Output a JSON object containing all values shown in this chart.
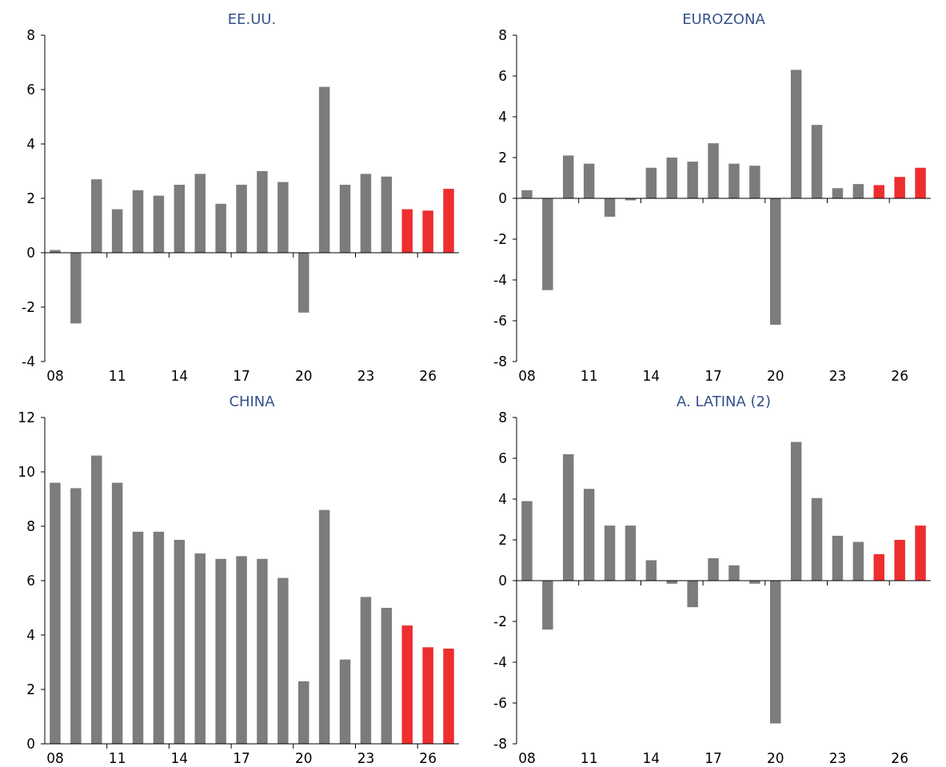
{
  "chart_data": [
    {
      "type": "bar",
      "title": "EE.UU.",
      "categories": [
        "08",
        null,
        null,
        "11",
        null,
        null,
        "14",
        null,
        null,
        "17",
        null,
        null,
        "20",
        null,
        null,
        "23",
        null,
        null,
        "26",
        null
      ],
      "values": [
        0.1,
        -2.6,
        2.7,
        1.6,
        2.3,
        2.1,
        2.5,
        2.9,
        1.8,
        2.5,
        3.0,
        2.6,
        -2.2,
        6.1,
        2.5,
        2.9,
        2.8,
        1.6,
        1.55,
        2.35
      ],
      "colors": [
        "#7a7c7e",
        "#7a7c7e",
        "#7a7c7e",
        "#7a7c7e",
        "#7a7c7e",
        "#7a7c7e",
        "#7a7c7e",
        "#7a7c7e",
        "#7a7c7e",
        "#7a7c7e",
        "#7a7c7e",
        "#7a7c7e",
        "#7a7c7e",
        "#7a7c7e",
        "#7a7c7e",
        "#7a7c7e",
        "#7a7c7e",
        "#ee2e2e",
        "#ee2e2e",
        "#ee2e2e"
      ],
      "ylim": [
        -4,
        8
      ],
      "yticks": [
        -4,
        -2,
        0,
        2,
        4,
        6,
        8
      ]
    },
    {
      "type": "bar",
      "title": "EUROZONA",
      "categories": [
        "08",
        null,
        null,
        "11",
        null,
        null,
        "14",
        null,
        null,
        "17",
        null,
        null,
        "20",
        null,
        null,
        "23",
        null,
        null,
        "26",
        null
      ],
      "values": [
        0.4,
        -4.5,
        2.1,
        1.7,
        -0.9,
        -0.1,
        1.5,
        2.0,
        1.8,
        2.7,
        1.7,
        1.6,
        -6.2,
        6.3,
        3.6,
        0.5,
        0.7,
        0.65,
        1.05,
        1.5
      ],
      "colors": [
        "#7a7c7e",
        "#7a7c7e",
        "#7a7c7e",
        "#7a7c7e",
        "#7a7c7e",
        "#7a7c7e",
        "#7a7c7e",
        "#7a7c7e",
        "#7a7c7e",
        "#7a7c7e",
        "#7a7c7e",
        "#7a7c7e",
        "#7a7c7e",
        "#7a7c7e",
        "#7a7c7e",
        "#7a7c7e",
        "#7a7c7e",
        "#ee2e2e",
        "#ee2e2e",
        "#ee2e2e"
      ],
      "ylim": [
        -8,
        8
      ],
      "yticks": [
        -8,
        -6,
        -4,
        -2,
        0,
        2,
        4,
        6,
        8
      ]
    },
    {
      "type": "bar",
      "title": "CHINA",
      "categories": [
        "08",
        null,
        null,
        "11",
        null,
        null,
        "14",
        null,
        null,
        "17",
        null,
        null,
        "20",
        null,
        null,
        "23",
        null,
        null,
        "26",
        null
      ],
      "values": [
        9.6,
        9.4,
        10.6,
        9.6,
        7.8,
        7.8,
        7.5,
        7.0,
        6.8,
        6.9,
        6.8,
        6.1,
        2.3,
        8.6,
        3.1,
        5.4,
        5.0,
        4.35,
        3.55,
        3.5
      ],
      "colors": [
        "#7a7c7e",
        "#7a7c7e",
        "#7a7c7e",
        "#7a7c7e",
        "#7a7c7e",
        "#7a7c7e",
        "#7a7c7e",
        "#7a7c7e",
        "#7a7c7e",
        "#7a7c7e",
        "#7a7c7e",
        "#7a7c7e",
        "#7a7c7e",
        "#7a7c7e",
        "#7a7c7e",
        "#7a7c7e",
        "#7a7c7e",
        "#ee2e2e",
        "#ee2e2e",
        "#ee2e2e"
      ],
      "ylim": [
        0,
        12
      ],
      "yticks": [
        0,
        2,
        4,
        6,
        8,
        10,
        12
      ]
    },
    {
      "type": "bar",
      "title": "A. LATINA (2)",
      "categories": [
        "08",
        null,
        null,
        "11",
        null,
        null,
        "14",
        null,
        null,
        "17",
        null,
        null,
        "20",
        null,
        null,
        "23",
        null,
        null,
        "26",
        null
      ],
      "values": [
        3.9,
        -2.4,
        6.2,
        4.5,
        2.7,
        2.7,
        1.0,
        -0.15,
        -1.3,
        1.1,
        0.75,
        -0.15,
        -7.0,
        6.8,
        4.05,
        2.2,
        1.9,
        1.3,
        2.0,
        2.7
      ],
      "colors": [
        "#7a7c7e",
        "#7a7c7e",
        "#7a7c7e",
        "#7a7c7e",
        "#7a7c7e",
        "#7a7c7e",
        "#7a7c7e",
        "#7a7c7e",
        "#7a7c7e",
        "#7a7c7e",
        "#7a7c7e",
        "#7a7c7e",
        "#7a7c7e",
        "#7a7c7e",
        "#7a7c7e",
        "#7a7c7e",
        "#7a7c7e",
        "#ee2e2e",
        "#ee2e2e",
        "#ee2e2e"
      ],
      "ylim": [
        -8,
        8
      ],
      "yticks": [
        -8,
        -6,
        -4,
        -2,
        0,
        2,
        4,
        6,
        8
      ]
    }
  ]
}
